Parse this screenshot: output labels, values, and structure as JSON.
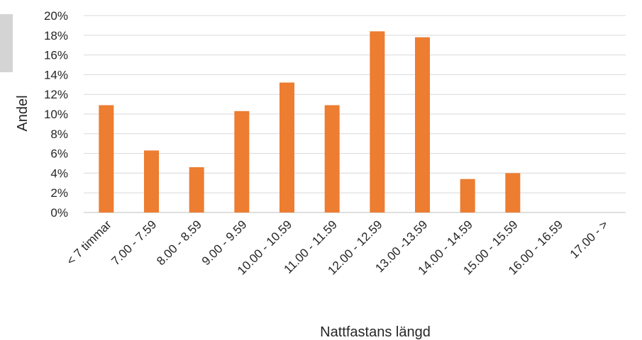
{
  "chart_data": {
    "type": "bar",
    "title": "",
    "xlabel": "Nattfastans längd",
    "ylabel": "Andel",
    "ylim": [
      0,
      20
    ],
    "y_ticks": [
      "0%",
      "2%",
      "4%",
      "6%",
      "8%",
      "10%",
      "12%",
      "14%",
      "16%",
      "18%",
      "20%"
    ],
    "categories": [
      "< 7 timmar",
      "7.00 - 7.59",
      "8.00 - 8.59",
      "9.00 - 9.59",
      "10.00 - 10.59",
      "11.00 - 11.59",
      "12.00 - 12.59",
      "13.00 -13.59",
      "14.00 - 14.59",
      "15.00 - 15.59",
      "16.00 - 16.59",
      "17.00 - >"
    ],
    "values": [
      10.9,
      6.3,
      4.6,
      10.3,
      13.2,
      10.9,
      18.4,
      17.8,
      3.4,
      4.0,
      0,
      0
    ],
    "bar_color": "#ed7d31",
    "grid": true,
    "legend": "none"
  }
}
